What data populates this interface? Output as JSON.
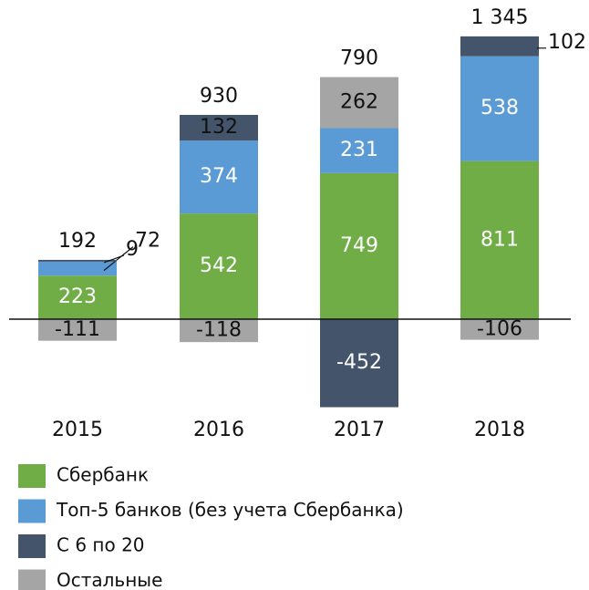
{
  "chart_data": {
    "type": "stacked_bar",
    "categories": [
      "2015",
      "2016",
      "2017",
      "2018"
    ],
    "series": [
      {
        "name": "Сбербанк",
        "color": "#70ad47",
        "values": [
          223,
          542,
          749,
          811
        ]
      },
      {
        "name": "Топ-5 банков (без учета Сбербанка)",
        "color": "#5b9bd5",
        "values": [
          72,
          374,
          231,
          538
        ]
      },
      {
        "name": "С 6 по 20",
        "color": "#44546a",
        "values": [
          9,
          132,
          -452,
          102
        ]
      },
      {
        "name": "Остальные",
        "color": "#a5a5a5",
        "values": [
          -111,
          -118,
          262,
          -106
        ]
      }
    ],
    "totals": {
      "values": [
        192,
        930,
        790,
        1345
      ],
      "value_labels": [
        "192",
        "930",
        "790",
        "1 345"
      ]
    },
    "ylim": [
      -500,
      1500
    ]
  }
}
